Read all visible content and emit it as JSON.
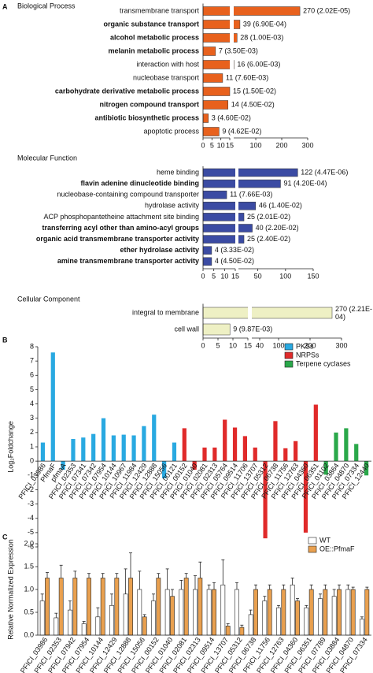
{
  "chart_data": [
    {
      "type": "bar",
      "orientation": "horizontal",
      "panel_label": "A",
      "title": "Biological Process",
      "categories": [
        "transmembrane transport",
        "organic substance transport",
        "alcohol metabolic process",
        "melanin metabolic process",
        "interaction with host",
        "nucleobase transport",
        "carbohydrate derivative metabolic process",
        "nitrogen compound transport",
        "antibiotic biosynthetic process",
        "apoptotic process"
      ],
      "bold": [
        false,
        true,
        true,
        true,
        false,
        false,
        true,
        true,
        true,
        false
      ],
      "values": [
        270,
        39,
        28,
        7,
        16,
        11,
        15,
        14,
        3,
        9
      ],
      "value_labels": [
        "270 (2.02E-05)",
        "39 (6.90E-04)",
        "28 (1.00E-03)",
        "7 (3.50E-03)",
        "16 (6.00E-03)",
        "11 (7.60E-03)",
        "15 (1.50E-02)",
        "14 (4.50E-02)",
        "3 (4.60E-02)",
        "9 (4.62E-02)"
      ],
      "color": "#e8611d",
      "xlim": [
        0,
        300
      ],
      "xbreak": 15,
      "xticks": [
        0,
        5,
        10,
        15,
        100,
        200,
        300
      ]
    },
    {
      "type": "bar",
      "orientation": "horizontal",
      "title": "Molecular Function",
      "categories": [
        "heme binding",
        "flavin adenine dinucleotide binding",
        "nucleobase-containing compound transporter",
        "hydrolase activity",
        "ACP phosphopantetheine attachment site binding",
        "transferring acyl other than amino-acyl groups",
        "organic acid transmembrane transporter activity",
        "ether hydrolase activity",
        "amine transmembrane transporter activity"
      ],
      "bold": [
        false,
        true,
        false,
        false,
        false,
        true,
        true,
        true,
        true
      ],
      "values": [
        122,
        91,
        11,
        46,
        25,
        40,
        25,
        4,
        4
      ],
      "value_labels": [
        "122 (4.47E-06)",
        "91 (4.20E-04)",
        "11 (7.66E-03)",
        "46 (1.40E-02)",
        "25 (2.01E-02)",
        "40 (2.20E-02)",
        "25 (2.40E-02)",
        "4 (3.33E-02)",
        "4 (4.50E-02)"
      ],
      "color": "#3b4ba3",
      "xlim": [
        0,
        150
      ],
      "xbreak": 15,
      "xticks": [
        0,
        5,
        10,
        15,
        50,
        100,
        150
      ]
    },
    {
      "type": "bar",
      "orientation": "horizontal",
      "title": "Cellular Component",
      "categories": [
        "integral to membrane",
        "cell wall"
      ],
      "bold": [
        false,
        false
      ],
      "values": [
        270,
        9
      ],
      "value_labels": [
        "270 (2.21E-04)",
        "9 (9.87E-03)"
      ],
      "color": "#eef0c4",
      "xlim": [
        0,
        300
      ],
      "xbreak": 15,
      "xticks": [
        0,
        5,
        10,
        15,
        40,
        100,
        200,
        300
      ]
    },
    {
      "type": "bar",
      "orientation": "vertical",
      "panel_label": "B",
      "ylabel": "Log₂Foldchange",
      "categories": [
        "PFICI_03986",
        "PfmaF",
        "pfmaA",
        "PFICI_02353",
        "PFICI_07341",
        "PFICI_07342",
        "PFICI_07954",
        "PFICI_10144",
        "PFICI_10967",
        "PFICI_11984",
        "PFICI_12429",
        "PFICI_12888",
        "PFICI_15056",
        "PFICI_00121",
        "PFICI_00152",
        "PFICI_01040",
        "PFICI_02081",
        "PFICI_02313",
        "PFICI_05764",
        "PFICI_09514",
        "PFICI_11706",
        "PFICI_13707",
        "PFICI_05312",
        "PFICI_06738",
        "PFICI_11756",
        "PFICI_12763",
        "PFICI_04360",
        "PFICI_06351",
        "PFICI_01102",
        "PFICI_03864",
        "PFICI_04870",
        "PFICI_07334",
        "PFICI_12440"
      ],
      "series": [
        {
          "name": "PKSs",
          "color": "#29a9e1",
          "values": [
            1.3,
            7.6,
            -0.6,
            1.55,
            1.65,
            1.9,
            3.0,
            1.8,
            1.85,
            1.8,
            2.45,
            3.25,
            -1.2,
            1.3,
            null,
            null,
            null,
            null,
            null,
            null,
            null,
            null,
            null,
            null,
            null,
            null,
            null,
            null,
            null,
            null,
            null,
            null,
            null
          ]
        },
        {
          "name": "NRPSs",
          "color": "#e02a2a",
          "values": [
            null,
            null,
            null,
            null,
            null,
            null,
            null,
            null,
            null,
            null,
            null,
            null,
            null,
            null,
            2.3,
            -0.6,
            0.95,
            0.95,
            2.9,
            2.35,
            1.75,
            0.95,
            -5.4,
            2.8,
            0.9,
            1.4,
            -5.0,
            3.95,
            null,
            null,
            null,
            null,
            null
          ]
        },
        {
          "name": "Terpene cyclases",
          "color": "#2aa84a",
          "values": [
            null,
            null,
            null,
            null,
            null,
            null,
            null,
            null,
            null,
            null,
            null,
            null,
            null,
            null,
            null,
            null,
            null,
            null,
            null,
            null,
            null,
            null,
            null,
            null,
            null,
            null,
            null,
            null,
            -0.95,
            2.0,
            2.3,
            1.2,
            -1.0
          ]
        }
      ],
      "ylim": [
        -6,
        8
      ],
      "yticks": [
        -6,
        -5,
        -4,
        -3,
        -2,
        -1,
        0,
        1,
        2,
        3,
        4,
        5,
        6,
        7,
        8
      ],
      "legend": "top-right"
    },
    {
      "type": "bar",
      "orientation": "vertical",
      "panel_label": "C",
      "ylabel": "Relative Normalized Expression",
      "categories": [
        "PFICI_03986",
        "PFICI_02353",
        "PFICI_07942",
        "PFICI_07954",
        "PFICI_10144",
        "PFICI_12429",
        "PFICI_12888",
        "PFICI_15056",
        "PFICI_00152",
        "PFICI_01040",
        "PFICI_02081",
        "PFICI_02313",
        "PFICI_09514",
        "PFICI_13707",
        "PFICI_05312",
        "PFICI_06738",
        "PFICI_11756",
        "PFICI_12763",
        "PFICI_04360",
        "PFICI_06351",
        "PFICI_07789",
        "PFICI_03884",
        "PFICI_04870",
        "PFICI_07334"
      ],
      "series": [
        {
          "name": "WT",
          "color": "#ffffff",
          "values": [
            0.75,
            0.38,
            0.55,
            0.25,
            0.4,
            0.65,
            0.9,
            1.0,
            0.75,
            1.0,
            1.0,
            1.0,
            1.0,
            1.1,
            1.0,
            0.45,
            0.75,
            0.6,
            1.1,
            0.6,
            0.8,
            0.85,
            1.0,
            0.35
          ],
          "errors": [
            0.15,
            0.1,
            0.2,
            0.05,
            0.2,
            0.25,
            0.55,
            0.4,
            0.15,
            0.45,
            0.2,
            0.3,
            0.1,
            0.55,
            0.15,
            0.1,
            0.1,
            0.05,
            0.15,
            0.05,
            0.1,
            0.15,
            0.1,
            0.05
          ]
        },
        {
          "name": "OE::PfmaF",
          "color": "#e9a04f",
          "values": [
            1.25,
            1.25,
            1.25,
            1.25,
            1.25,
            1.25,
            1.25,
            0.4,
            1.25,
            0.85,
            1.25,
            1.25,
            1.0,
            0.2,
            0.17,
            1.0,
            1.0,
            1.0,
            0.75,
            1.0,
            1.0,
            1.0,
            1.0,
            1.0
          ],
          "errors": [
            0.12,
            0.28,
            0.15,
            0.1,
            0.1,
            0.1,
            0.55,
            0.05,
            0.1,
            0.15,
            0.1,
            0.35,
            0.15,
            0.05,
            0.05,
            0.1,
            0.1,
            0.1,
            0.05,
            0.1,
            0.1,
            0.1,
            0.05,
            0.05
          ]
        }
      ],
      "ylim": [
        0,
        2
      ],
      "yticks": [
        {
          "value": 0,
          "label": "0.0"
        },
        {
          "value": 0.5,
          "label": "0.5"
        },
        {
          "value": 1,
          "label": "1.0"
        },
        {
          "value": 1.5,
          "label": "1.5"
        },
        {
          "value": 2,
          "label": "2.0"
        }
      ],
      "legend": "top-right"
    }
  ]
}
